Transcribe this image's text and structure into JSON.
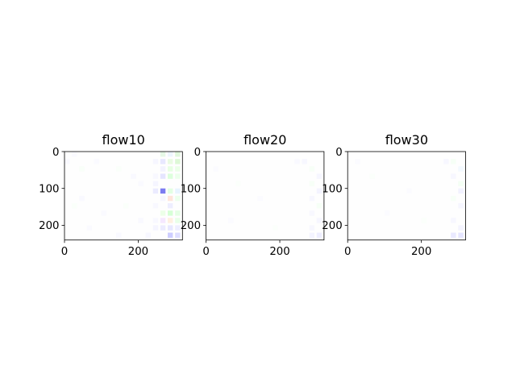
{
  "chart_data": [
    {
      "type": "heatmap",
      "title": "flow10",
      "xlim": [
        0,
        320
      ],
      "ylim": [
        240,
        0
      ],
      "xticks": [
        0,
        200
      ],
      "yticks": [
        0,
        100,
        200
      ],
      "colormap": "flow-rgb",
      "cell_grid": {
        "cols": 16,
        "rows": 12,
        "cell_w": 20,
        "cell_h": 20
      },
      "cells": [
        {
          "x": 270,
          "y": 10,
          "color": "#e3f7e3",
          "alpha": 0.9
        },
        {
          "x": 290,
          "y": 10,
          "color": "#eaf2ff",
          "alpha": 0.8
        },
        {
          "x": 310,
          "y": 10,
          "color": "#ddf5d8",
          "alpha": 0.9
        },
        {
          "x": 250,
          "y": 30,
          "color": "#f4f4ff",
          "alpha": 0.8
        },
        {
          "x": 270,
          "y": 30,
          "color": "#e6e6ff",
          "alpha": 0.9
        },
        {
          "x": 290,
          "y": 30,
          "color": "#e8fbe0",
          "alpha": 0.9
        },
        {
          "x": 310,
          "y": 30,
          "color": "#d9f7d2",
          "alpha": 0.9
        },
        {
          "x": 270,
          "y": 50,
          "color": "#f0f0ff",
          "alpha": 0.8
        },
        {
          "x": 290,
          "y": 50,
          "color": "#e4ffe0",
          "alpha": 0.9
        },
        {
          "x": 310,
          "y": 50,
          "color": "#e9ffe6",
          "alpha": 0.9
        },
        {
          "x": 250,
          "y": 70,
          "color": "#f6f6ff",
          "alpha": 0.8
        },
        {
          "x": 270,
          "y": 70,
          "color": "#e2e2ff",
          "alpha": 0.9
        },
        {
          "x": 290,
          "y": 70,
          "color": "#d8ffd8",
          "alpha": 0.9
        },
        {
          "x": 310,
          "y": 70,
          "color": "#eaffea",
          "alpha": 0.9
        },
        {
          "x": 250,
          "y": 90,
          "color": "#f2f2ff",
          "alpha": 0.8
        },
        {
          "x": 270,
          "y": 110,
          "color": "#6e6ef0",
          "alpha": 0.9
        },
        {
          "x": 290,
          "y": 110,
          "color": "#e0ffe0",
          "alpha": 0.9
        },
        {
          "x": 310,
          "y": 110,
          "color": "#e6f3ff",
          "alpha": 0.9
        },
        {
          "x": 250,
          "y": 110,
          "color": "#e6e6ff",
          "alpha": 0.8
        },
        {
          "x": 270,
          "y": 130,
          "color": "#f4f4ff",
          "alpha": 0.8
        },
        {
          "x": 290,
          "y": 130,
          "color": "#ffe2d6",
          "alpha": 0.9
        },
        {
          "x": 310,
          "y": 130,
          "color": "#eaffea",
          "alpha": 0.9
        },
        {
          "x": 250,
          "y": 150,
          "color": "#f6f6ff",
          "alpha": 0.8
        },
        {
          "x": 290,
          "y": 150,
          "color": "#ececff",
          "alpha": 0.9
        },
        {
          "x": 270,
          "y": 170,
          "color": "#eaffe6",
          "alpha": 0.9
        },
        {
          "x": 290,
          "y": 170,
          "color": "#d2ffd2",
          "alpha": 0.9
        },
        {
          "x": 310,
          "y": 170,
          "color": "#e2ffe2",
          "alpha": 0.9
        },
        {
          "x": 250,
          "y": 190,
          "color": "#f6f6ff",
          "alpha": 0.8
        },
        {
          "x": 270,
          "y": 190,
          "color": "#f4e6ff",
          "alpha": 0.9
        },
        {
          "x": 290,
          "y": 190,
          "color": "#ffeede",
          "alpha": 0.9
        },
        {
          "x": 310,
          "y": 190,
          "color": "#e6ffe6",
          "alpha": 0.9
        },
        {
          "x": 250,
          "y": 210,
          "color": "#f2f2ff",
          "alpha": 0.8
        },
        {
          "x": 270,
          "y": 210,
          "color": "#eaeaff",
          "alpha": 0.9
        },
        {
          "x": 290,
          "y": 210,
          "color": "#e6e6ff",
          "alpha": 0.9
        },
        {
          "x": 310,
          "y": 210,
          "color": "#ececff",
          "alpha": 0.9
        },
        {
          "x": 290,
          "y": 230,
          "color": "#c8c8ff",
          "alpha": 0.9
        },
        {
          "x": 310,
          "y": 230,
          "color": "#dadaff",
          "alpha": 0.9
        },
        {
          "x": 10,
          "y": 30,
          "color": "#f7f7ff",
          "alpha": 0.7
        },
        {
          "x": 30,
          "y": 10,
          "color": "#f8f8ff",
          "alpha": 0.7
        },
        {
          "x": 50,
          "y": 50,
          "color": "#f7fff7",
          "alpha": 0.7
        },
        {
          "x": 90,
          "y": 30,
          "color": "#f8f8ff",
          "alpha": 0.7
        },
        {
          "x": 150,
          "y": 50,
          "color": "#f8fff8",
          "alpha": 0.7
        },
        {
          "x": 190,
          "y": 70,
          "color": "#f7f7ff",
          "alpha": 0.7
        },
        {
          "x": 210,
          "y": 90,
          "color": "#f8f8ff",
          "alpha": 0.7
        },
        {
          "x": 30,
          "y": 150,
          "color": "#f8fff8",
          "alpha": 0.7
        },
        {
          "x": 50,
          "y": 130,
          "color": "#f7f7ff",
          "alpha": 0.7
        },
        {
          "x": 110,
          "y": 170,
          "color": "#f8f8ff",
          "alpha": 0.7
        },
        {
          "x": 170,
          "y": 150,
          "color": "#f8fff8",
          "alpha": 0.7
        },
        {
          "x": 210,
          "y": 190,
          "color": "#f7f7ff",
          "alpha": 0.7
        },
        {
          "x": 70,
          "y": 210,
          "color": "#f8f8ff",
          "alpha": 0.7
        },
        {
          "x": 150,
          "y": 230,
          "color": "#f7f7ff",
          "alpha": 0.7
        },
        {
          "x": 230,
          "y": 230,
          "color": "#f4f4ff",
          "alpha": 0.7
        }
      ]
    },
    {
      "type": "heatmap",
      "title": "flow20",
      "xlim": [
        0,
        320
      ],
      "ylim": [
        240,
        0
      ],
      "xticks": [
        0,
        200
      ],
      "yticks": [
        0,
        100,
        200
      ],
      "colormap": "flow-rgb",
      "cell_grid": {
        "cols": 16,
        "rows": 12,
        "cell_w": 20,
        "cell_h": 20
      },
      "cells": [
        {
          "x": 250,
          "y": 30,
          "color": "#f6f6ff",
          "alpha": 0.7
        },
        {
          "x": 270,
          "y": 30,
          "color": "#f4f4ff",
          "alpha": 0.7
        },
        {
          "x": 290,
          "y": 50,
          "color": "#f4fff4",
          "alpha": 0.7
        },
        {
          "x": 310,
          "y": 70,
          "color": "#f2f2ff",
          "alpha": 0.7
        },
        {
          "x": 290,
          "y": 90,
          "color": "#f4fff4",
          "alpha": 0.7
        },
        {
          "x": 310,
          "y": 110,
          "color": "#f0f0ff",
          "alpha": 0.7
        },
        {
          "x": 290,
          "y": 130,
          "color": "#f4f4ff",
          "alpha": 0.7
        },
        {
          "x": 310,
          "y": 150,
          "color": "#f2fff2",
          "alpha": 0.7
        },
        {
          "x": 290,
          "y": 170,
          "color": "#f5f5ff",
          "alpha": 0.7
        },
        {
          "x": 310,
          "y": 190,
          "color": "#f2f2ff",
          "alpha": 0.7
        },
        {
          "x": 290,
          "y": 210,
          "color": "#f4f4ff",
          "alpha": 0.7
        },
        {
          "x": 310,
          "y": 230,
          "color": "#eaeaff",
          "alpha": 0.8
        },
        {
          "x": 290,
          "y": 230,
          "color": "#f0f0ff",
          "alpha": 0.7
        },
        {
          "x": 30,
          "y": 50,
          "color": "#f9f9ff",
          "alpha": 0.6
        },
        {
          "x": 90,
          "y": 90,
          "color": "#f9fff9",
          "alpha": 0.6
        },
        {
          "x": 150,
          "y": 130,
          "color": "#f9f9ff",
          "alpha": 0.6
        },
        {
          "x": 70,
          "y": 190,
          "color": "#f9f9ff",
          "alpha": 0.6
        },
        {
          "x": 190,
          "y": 210,
          "color": "#f9fff9",
          "alpha": 0.6
        }
      ]
    },
    {
      "type": "heatmap",
      "title": "flow30",
      "xlim": [
        0,
        320
      ],
      "ylim": [
        240,
        0
      ],
      "xticks": [
        0,
        200
      ],
      "yticks": [
        0,
        100,
        200
      ],
      "colormap": "flow-rgb",
      "cell_grid": {
        "cols": 16,
        "rows": 12,
        "cell_w": 20,
        "cell_h": 20
      },
      "cells": [
        {
          "x": 270,
          "y": 30,
          "color": "#f4f4ff",
          "alpha": 0.7
        },
        {
          "x": 290,
          "y": 30,
          "color": "#f2fff2",
          "alpha": 0.7
        },
        {
          "x": 310,
          "y": 50,
          "color": "#eef6ff",
          "alpha": 0.7
        },
        {
          "x": 290,
          "y": 70,
          "color": "#f4f4ff",
          "alpha": 0.7
        },
        {
          "x": 310,
          "y": 90,
          "color": "#f0fff0",
          "alpha": 0.7
        },
        {
          "x": 310,
          "y": 110,
          "color": "#ececff",
          "alpha": 0.7
        },
        {
          "x": 290,
          "y": 130,
          "color": "#f4fff4",
          "alpha": 0.7
        },
        {
          "x": 310,
          "y": 150,
          "color": "#f2f2ff",
          "alpha": 0.7
        },
        {
          "x": 290,
          "y": 190,
          "color": "#f4f4ff",
          "alpha": 0.7
        },
        {
          "x": 310,
          "y": 210,
          "color": "#f0f0ff",
          "alpha": 0.7
        },
        {
          "x": 290,
          "y": 230,
          "color": "#e4e4ff",
          "alpha": 0.8
        },
        {
          "x": 310,
          "y": 230,
          "color": "#dedeff",
          "alpha": 0.8
        },
        {
          "x": 30,
          "y": 30,
          "color": "#f9f9ff",
          "alpha": 0.6
        },
        {
          "x": 70,
          "y": 70,
          "color": "#f9fff9",
          "alpha": 0.6
        },
        {
          "x": 170,
          "y": 110,
          "color": "#f9f9ff",
          "alpha": 0.6
        },
        {
          "x": 110,
          "y": 170,
          "color": "#f9f9ff",
          "alpha": 0.6
        },
        {
          "x": 210,
          "y": 190,
          "color": "#f9fff9",
          "alpha": 0.6
        }
      ]
    }
  ]
}
